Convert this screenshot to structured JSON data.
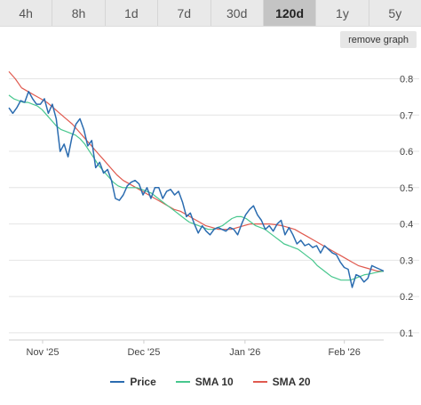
{
  "tabs": [
    {
      "label": "4h",
      "active": false
    },
    {
      "label": "8h",
      "active": false
    },
    {
      "label": "1d",
      "active": false
    },
    {
      "label": "7d",
      "active": false
    },
    {
      "label": "30d",
      "active": false
    },
    {
      "label": "120d",
      "active": true
    },
    {
      "label": "1y",
      "active": false
    },
    {
      "label": "5y",
      "active": false
    }
  ],
  "remove_graph_label": "remove graph",
  "legend": [
    {
      "label": "Price",
      "color": "#2b6cb0"
    },
    {
      "label": "SMA 10",
      "color": "#48c78e"
    },
    {
      "label": "SMA 20",
      "color": "#e05a4f"
    }
  ],
  "chart_data": {
    "type": "line",
    "x_ticks": [
      "Nov '25",
      "Dec '25",
      "Jan '26",
      "Feb '26"
    ],
    "y_ticks": [
      0.8,
      0.7,
      0.6,
      0.5,
      0.4,
      0.3,
      0.2,
      0.1
    ],
    "ylim": [
      0.08,
      0.87
    ],
    "grid": true,
    "legend_position": "bottom",
    "series": [
      {
        "name": "Price",
        "color": "#2b6cb0",
        "values": [
          0.72,
          0.705,
          0.72,
          0.74,
          0.735,
          0.765,
          0.745,
          0.73,
          0.73,
          0.745,
          0.705,
          0.73,
          0.69,
          0.6,
          0.62,
          0.585,
          0.64,
          0.675,
          0.69,
          0.66,
          0.615,
          0.63,
          0.555,
          0.57,
          0.54,
          0.55,
          0.52,
          0.47,
          0.465,
          0.48,
          0.505,
          0.515,
          0.52,
          0.51,
          0.48,
          0.5,
          0.47,
          0.5,
          0.5,
          0.47,
          0.49,
          0.495,
          0.48,
          0.49,
          0.46,
          0.42,
          0.43,
          0.4,
          0.375,
          0.395,
          0.38,
          0.37,
          0.385,
          0.39,
          0.385,
          0.38,
          0.39,
          0.385,
          0.37,
          0.4,
          0.425,
          0.44,
          0.45,
          0.425,
          0.41,
          0.385,
          0.395,
          0.38,
          0.4,
          0.41,
          0.37,
          0.39,
          0.37,
          0.345,
          0.355,
          0.34,
          0.345,
          0.335,
          0.34,
          0.32,
          0.34,
          0.33,
          0.32,
          0.315,
          0.295,
          0.28,
          0.275,
          0.225,
          0.26,
          0.255,
          0.24,
          0.25,
          0.285,
          0.28,
          0.275,
          0.27
        ]
      },
      {
        "name": "SMA 10",
        "color": "#48c78e",
        "values": [
          0.755,
          0.745,
          0.74,
          0.735,
          0.735,
          0.73,
          0.725,
          0.715,
          0.7,
          0.685,
          0.67,
          0.66,
          0.655,
          0.65,
          0.645,
          0.635,
          0.62,
          0.6,
          0.58,
          0.56,
          0.545,
          0.53,
          0.515,
          0.505,
          0.5,
          0.5,
          0.5,
          0.5,
          0.495,
          0.49,
          0.485,
          0.475,
          0.465,
          0.455,
          0.445,
          0.435,
          0.425,
          0.415,
          0.405,
          0.4,
          0.395,
          0.39,
          0.385,
          0.385,
          0.39,
          0.395,
          0.405,
          0.415,
          0.42,
          0.42,
          0.415,
          0.405,
          0.395,
          0.39,
          0.385,
          0.375,
          0.365,
          0.355,
          0.345,
          0.34,
          0.335,
          0.33,
          0.32,
          0.31,
          0.3,
          0.285,
          0.275,
          0.265,
          0.255,
          0.25,
          0.245,
          0.245,
          0.245,
          0.25,
          0.255,
          0.26,
          0.262,
          0.265,
          0.268,
          0.27
        ]
      },
      {
        "name": "SMA 20",
        "color": "#e05a4f",
        "values": [
          0.82,
          0.8,
          0.775,
          0.765,
          0.755,
          0.745,
          0.735,
          0.72,
          0.705,
          0.69,
          0.675,
          0.655,
          0.635,
          0.615,
          0.595,
          0.575,
          0.555,
          0.535,
          0.52,
          0.51,
          0.5,
          0.49,
          0.48,
          0.47,
          0.46,
          0.45,
          0.44,
          0.435,
          0.425,
          0.415,
          0.405,
          0.395,
          0.39,
          0.385,
          0.385,
          0.385,
          0.39,
          0.395,
          0.4,
          0.4,
          0.4,
          0.4,
          0.398,
          0.395,
          0.39,
          0.385,
          0.375,
          0.365,
          0.355,
          0.345,
          0.335,
          0.325,
          0.315,
          0.305,
          0.295,
          0.285,
          0.28,
          0.275,
          0.27,
          0.27
        ]
      }
    ]
  }
}
